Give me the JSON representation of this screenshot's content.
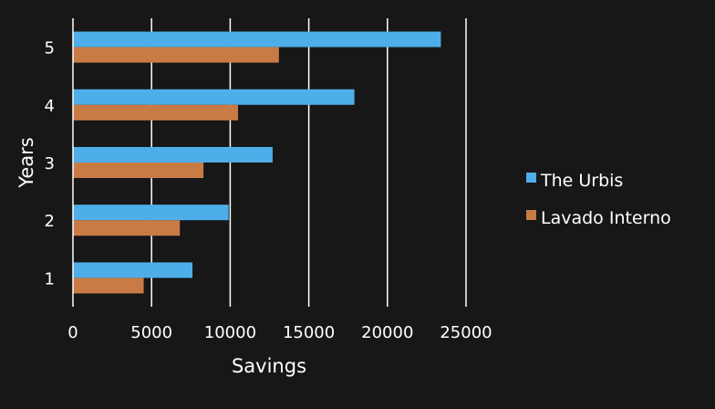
{
  "chart_data": {
    "type": "bar",
    "orientation": "horizontal",
    "categories": [
      "1",
      "2",
      "3",
      "4",
      "5"
    ],
    "series": [
      {
        "name": "The Urbis",
        "values": [
          7600,
          9900,
          12700,
          17900,
          23400
        ],
        "color": "#4eaeea"
      },
      {
        "name": "Lavado Interno",
        "values": [
          4500,
          6800,
          8300,
          10500,
          13100
        ],
        "color": "#c97b46"
      }
    ],
    "xlabel": "Savings",
    "ylabel": "Years",
    "xlim": [
      0,
      25000
    ],
    "xticks": [
      "0",
      "5000",
      "10000",
      "15000",
      "20000",
      "25000"
    ],
    "grid": true,
    "legend_position": "right"
  }
}
